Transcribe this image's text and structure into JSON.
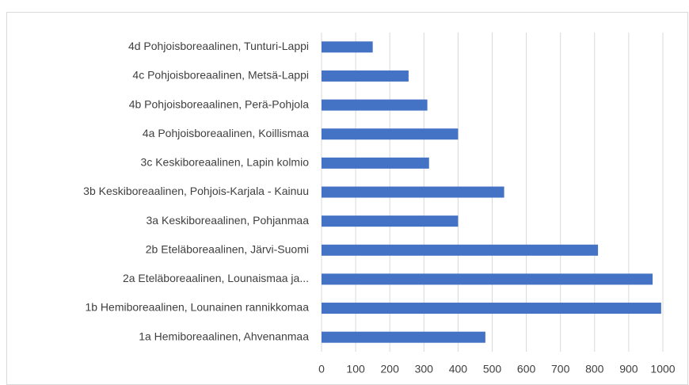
{
  "chart_data": {
    "type": "bar",
    "orientation": "horizontal",
    "categories": [
      "4d Pohjoisboreaalinen, Tunturi-Lappi",
      "4c Pohjoisboreaalinen, Metsä-Lappi",
      "4b Pohjoisboreaalinen, Perä-Pohjola",
      "4a Pohjoisboreaalinen, Koillismaa",
      "3c Keskiboreaalinen, Lapin kolmio",
      "3b Keskiboreaalinen, Pohjois-Karjala - Kainuu",
      "3a Keskiboreaalinen, Pohjanmaa",
      "2b Eteläboreaalinen, Järvi-Suomi",
      "2a Eteläboreaalinen, Lounaismaa ja...",
      "1b Hemiboreaalinen, Lounainen rannikkomaa",
      "1a Hemiboreaalinen, Ahvenanmaa"
    ],
    "values": [
      150,
      255,
      310,
      400,
      315,
      535,
      400,
      810,
      970,
      995,
      480
    ],
    "color": "#4472c4",
    "xlim": [
      0,
      1000
    ],
    "xticks": [
      0,
      100,
      200,
      300,
      400,
      500,
      600,
      700,
      800,
      900,
      1000
    ],
    "grid": true
  }
}
